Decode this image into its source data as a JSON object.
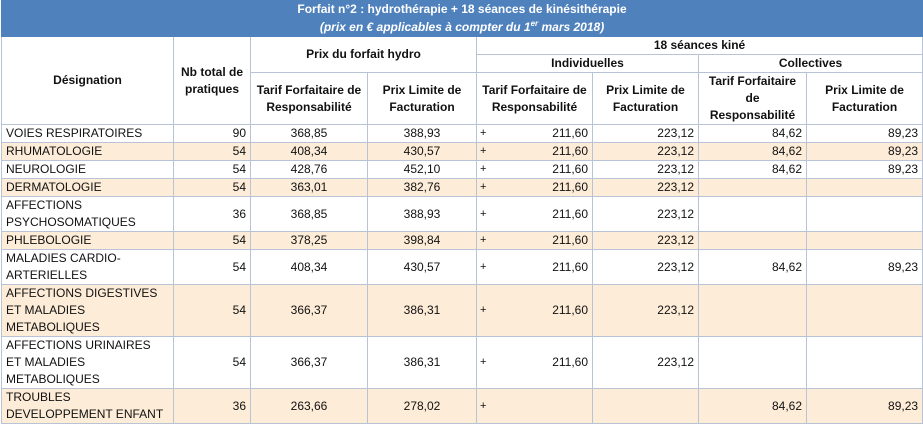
{
  "title": "Forfait n°2 : hydrothérapie + 18 séances de kinésithérapie",
  "subtitle_pre": "(prix en € applicables à compter du 1",
  "subtitle_sup": "er",
  "subtitle_post": " mars 2018)",
  "headers": {
    "designation": "Désignation",
    "nb_total": "Nb total de pratiques",
    "prix_forfait_hydro": "Prix du forfait hydro",
    "seances_kine": "18 séances kiné",
    "individuelles": "Individuelles",
    "collectives": "Collectives",
    "tarif_forfaitaire": "Tarif Forfaitaire de Responsabilité",
    "prix_limite": "Prix Limite de Facturation"
  },
  "rows": [
    {
      "name": "VOIES RESPIRATOIRES",
      "nb": "90",
      "hydro_tfr": "368,85",
      "hydro_plf": "388,93",
      "plus": "+",
      "ind_tfr": "211,60",
      "ind_plf": "223,12",
      "col_tfr": "84,62",
      "col_plf": "89,23"
    },
    {
      "name": "RHUMATOLOGIE",
      "nb": "54",
      "hydro_tfr": "408,34",
      "hydro_plf": "430,57",
      "plus": "+",
      "ind_tfr": "211,60",
      "ind_plf": "223,12",
      "col_tfr": "84,62",
      "col_plf": "89,23"
    },
    {
      "name": "NEUROLOGIE",
      "nb": "54",
      "hydro_tfr": "428,76",
      "hydro_plf": "452,10",
      "plus": "+",
      "ind_tfr": "211,60",
      "ind_plf": "223,12",
      "col_tfr": "84,62",
      "col_plf": "89,23"
    },
    {
      "name": "DERMATOLOGIE",
      "nb": "54",
      "hydro_tfr": "363,01",
      "hydro_plf": "382,76",
      "plus": "+",
      "ind_tfr": "211,60",
      "ind_plf": "223,12",
      "col_tfr": "",
      "col_plf": ""
    },
    {
      "name": "AFFECTIONS PSYCHOSOMATIQUES",
      "nb": "36",
      "hydro_tfr": "368,85",
      "hydro_plf": "388,93",
      "plus": "+",
      "ind_tfr": "211,60",
      "ind_plf": "223,12",
      "col_tfr": "",
      "col_plf": ""
    },
    {
      "name": "PHLEBOLOGIE",
      "nb": "54",
      "hydro_tfr": "378,25",
      "hydro_plf": "398,84",
      "plus": "+",
      "ind_tfr": "211,60",
      "ind_plf": "223,12",
      "col_tfr": "",
      "col_plf": ""
    },
    {
      "name": "MALADIES CARDIO-ARTERIELLES",
      "nb": "54",
      "hydro_tfr": "408,34",
      "hydro_plf": "430,57",
      "plus": "+",
      "ind_tfr": "211,60",
      "ind_plf": "223,12",
      "col_tfr": "84,62",
      "col_plf": "89,23"
    },
    {
      "name": "AFFECTIONS DIGESTIVES ET MALADIES METABOLIQUES",
      "nb": "54",
      "hydro_tfr": "366,37",
      "hydro_plf": "386,31",
      "plus": "+",
      "ind_tfr": "211,60",
      "ind_plf": "223,12",
      "col_tfr": "",
      "col_plf": ""
    },
    {
      "name": "AFFECTIONS URINAIRES ET MALADIES METABOLIQUES",
      "nb": "54",
      "hydro_tfr": "366,37",
      "hydro_plf": "386,31",
      "plus": "+",
      "ind_tfr": "211,60",
      "ind_plf": "223,12",
      "col_tfr": "",
      "col_plf": ""
    },
    {
      "name": "TROUBLES DEVELOPPEMENT ENFANT",
      "nb": "36",
      "hydro_tfr": "263,66",
      "hydro_plf": "278,02",
      "plus": "+",
      "ind_tfr": "",
      "ind_plf": "",
      "col_tfr": "84,62",
      "col_plf": "89,23"
    }
  ]
}
